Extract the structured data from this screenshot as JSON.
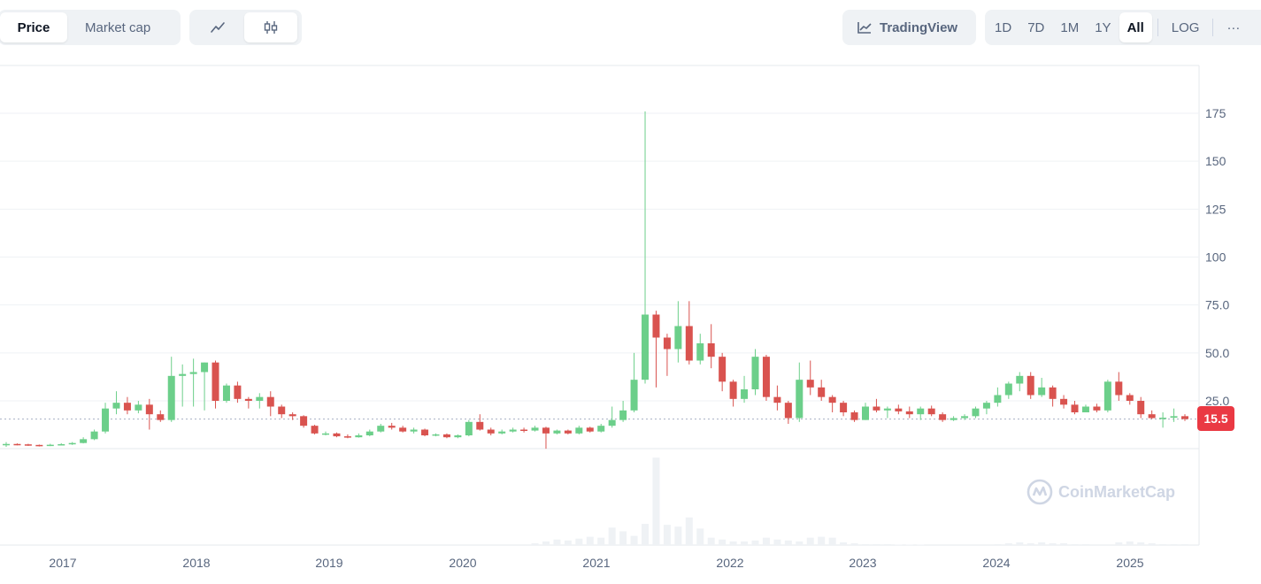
{
  "toolbar": {
    "metric_tabs": [
      "Price",
      "Market cap"
    ],
    "tradingview_label": "TradingView",
    "ranges": [
      "1D",
      "7D",
      "1M",
      "1Y",
      "All"
    ],
    "log_label": "LOG",
    "more_label": "···"
  },
  "current_price": "15.5",
  "watermark": "CoinMarketCap",
  "colors": {
    "up": "#16c784",
    "down": "#ea3943",
    "grid": "#eff2f5",
    "volume": "#eff2f5"
  },
  "chart_data": {
    "type": "candlestick",
    "title": "",
    "xlabel": "",
    "ylabel": "",
    "ylim": [
      -10,
      200
    ],
    "y_ticks": [
      25.0,
      50.0,
      75.0,
      100,
      125,
      150,
      175
    ],
    "y_tick_labels": [
      "25.0",
      "50.0",
      "75.0",
      "100",
      "125",
      "150",
      "175"
    ],
    "x_ticks": [
      "2017",
      "2018",
      "2019",
      "2020",
      "2021",
      "2022",
      "2023",
      "2024",
      "2025"
    ],
    "current_price": 15.5,
    "interval": "monthly",
    "candles": [
      [
        2,
        2.5,
        1.0,
        3.5
      ],
      [
        2.5,
        2.3,
        1.8,
        2.8
      ],
      [
        2.3,
        2.0,
        1.5,
        2.6
      ],
      [
        2.0,
        1.8,
        1.2,
        2.2
      ],
      [
        1.8,
        2.1,
        1.4,
        2.6
      ],
      [
        2.1,
        2.4,
        1.8,
        2.9
      ],
      [
        2.4,
        3.0,
        2.0,
        3.5
      ],
      [
        3.0,
        5.0,
        2.8,
        6.0
      ],
      [
        5.0,
        9.0,
        4.5,
        10.0
      ],
      [
        9.0,
        21.0,
        8.0,
        24.0
      ],
      [
        21.0,
        24.0,
        18.0,
        30.0
      ],
      [
        24.0,
        20.0,
        18.0,
        27.0
      ],
      [
        20.0,
        23.0,
        18.5,
        25.0
      ],
      [
        23.0,
        18.0,
        10.0,
        26.0
      ],
      [
        18.0,
        15.0,
        14.0,
        20.0
      ],
      [
        15.0,
        38.0,
        14.0,
        48.0
      ],
      [
        38.0,
        39.0,
        22.0,
        44.0
      ],
      [
        39.0,
        40.0,
        22.0,
        47.0
      ],
      [
        40.0,
        45.0,
        20.0,
        45.0
      ],
      [
        45.0,
        25.0,
        21.0,
        46.0
      ],
      [
        25.0,
        33.0,
        24.0,
        34.0
      ],
      [
        33.0,
        26.0,
        24.0,
        35.0
      ],
      [
        26.0,
        25.0,
        21.0,
        27.0
      ],
      [
        25.0,
        27.0,
        21.0,
        29.0
      ],
      [
        27.0,
        22.0,
        17.0,
        30.0
      ],
      [
        22.0,
        18.0,
        16.0,
        23.0
      ],
      [
        18.0,
        17.0,
        15.0,
        19.0
      ],
      [
        17.0,
        12.0,
        11.0,
        17.5
      ],
      [
        12.0,
        8.0,
        7.5,
        12.5
      ],
      [
        8.0,
        8.0,
        7.0,
        9.0
      ],
      [
        8.0,
        6.5,
        6.0,
        8.5
      ],
      [
        6.5,
        6.0,
        5.5,
        7.5
      ],
      [
        6.0,
        7.0,
        5.8,
        8.0
      ],
      [
        7.0,
        9.0,
        6.5,
        10.0
      ],
      [
        9.0,
        12.0,
        8.5,
        13.0
      ],
      [
        12.0,
        11.0,
        10.0,
        13.5
      ],
      [
        11.0,
        9.0,
        8.5,
        12.0
      ],
      [
        9.0,
        10.0,
        8.0,
        11.0
      ],
      [
        10.0,
        7.0,
        6.5,
        10.5
      ],
      [
        7.0,
        7.5,
        6.5,
        8.0
      ],
      [
        7.5,
        6.0,
        5.5,
        8.0
      ],
      [
        6.0,
        7.0,
        5.5,
        7.5
      ],
      [
        7.0,
        14.0,
        6.5,
        15.0
      ],
      [
        14.0,
        10.0,
        9.5,
        18.0
      ],
      [
        10.0,
        8.0,
        7.0,
        11.0
      ],
      [
        8.0,
        9.0,
        7.5,
        10.0
      ],
      [
        9.0,
        10.0,
        8.5,
        11.0
      ],
      [
        10.0,
        9.5,
        8.5,
        11.0
      ],
      [
        9.5,
        11.0,
        9.0,
        12.0
      ],
      [
        11.0,
        8.0,
        0.0,
        11.5
      ],
      [
        8.0,
        9.5,
        7.5,
        10.0
      ],
      [
        9.5,
        8.0,
        7.5,
        10.0
      ],
      [
        8.0,
        11.0,
        7.5,
        12.0
      ],
      [
        11.0,
        9.0,
        8.5,
        11.5
      ],
      [
        9.0,
        12.0,
        8.5,
        13.0
      ],
      [
        12.0,
        15.0,
        11.0,
        22.0
      ],
      [
        15.0,
        20.0,
        14.0,
        25.0
      ],
      [
        20.0,
        36.0,
        19.0,
        50.0
      ],
      [
        36.0,
        70.0,
        34.0,
        176.0
      ],
      [
        70.0,
        58.0,
        32.0,
        72.0
      ],
      [
        58.0,
        52.0,
        38.0,
        60.0
      ],
      [
        52.0,
        64.0,
        45.0,
        77.0
      ],
      [
        64.0,
        46.0,
        44.0,
        77.0
      ],
      [
        46.0,
        55.0,
        44.0,
        60.0
      ],
      [
        55.0,
        48.0,
        42.0,
        65.0
      ],
      [
        48.0,
        35.0,
        30.0,
        50.0
      ],
      [
        35.0,
        26.0,
        22.0,
        36.0
      ],
      [
        26.0,
        31.0,
        24.0,
        38.0
      ],
      [
        31.0,
        48.0,
        28.0,
        52.0
      ],
      [
        48.0,
        27.0,
        25.0,
        49.0
      ],
      [
        27.0,
        24.0,
        20.0,
        33.0
      ],
      [
        24.0,
        16.0,
        13.0,
        25.0
      ],
      [
        16.0,
        36.0,
        14.0,
        45.0
      ],
      [
        36.0,
        32.0,
        28.0,
        46.0
      ],
      [
        32.0,
        27.0,
        25.0,
        36.0
      ],
      [
        27.0,
        24.0,
        19.0,
        28.0
      ],
      [
        24.0,
        19.0,
        17.0,
        25.0
      ],
      [
        19.0,
        15.0,
        14.0,
        20.0
      ],
      [
        15.0,
        22.0,
        15.0,
        24.0
      ],
      [
        22.0,
        20.0,
        19.0,
        26.0
      ],
      [
        20.0,
        21.0,
        16.0,
        22.0
      ],
      [
        21.0,
        19.5,
        18.0,
        23.0
      ],
      [
        19.5,
        18.0,
        16.0,
        22.0
      ],
      [
        18.0,
        21.0,
        15.0,
        22.0
      ],
      [
        21.0,
        18.0,
        17.0,
        22.5
      ],
      [
        18.0,
        15.0,
        14.0,
        19.0
      ],
      [
        15.0,
        16.0,
        14.5,
        17.0
      ],
      [
        16.0,
        17.0,
        15.0,
        18.0
      ],
      [
        17.0,
        21.0,
        16.0,
        22.0
      ],
      [
        21.0,
        24.0,
        18.0,
        25.0
      ],
      [
        24.0,
        28.0,
        22.0,
        32.0
      ],
      [
        28.0,
        34.0,
        26.0,
        35.0
      ],
      [
        34.0,
        38.0,
        30.0,
        40.0
      ],
      [
        38.0,
        28.0,
        26.0,
        40.0
      ],
      [
        28.0,
        32.0,
        27.0,
        37.0
      ],
      [
        32.0,
        26.0,
        22.0,
        33.0
      ],
      [
        26.0,
        23.0,
        21.0,
        28.0
      ],
      [
        23.0,
        19.0,
        18.0,
        25.0
      ],
      [
        19.0,
        22.0,
        19.0,
        23.0
      ],
      [
        22.0,
        20.0,
        19.0,
        23.5
      ],
      [
        20.0,
        35.0,
        19.0,
        36.0
      ],
      [
        35.0,
        28.0,
        25.0,
        40.0
      ],
      [
        28.0,
        25.0,
        23.0,
        29.0
      ],
      [
        25.0,
        18.0,
        16.0,
        27.0
      ],
      [
        18.0,
        16.0,
        15.5,
        20.0
      ],
      [
        16.0,
        16.2,
        11.0,
        19.0
      ],
      [
        16.2,
        17.0,
        14.0,
        21.0
      ],
      [
        17.0,
        15.5,
        14.5,
        18.0
      ]
    ],
    "volume": [
      0,
      0,
      0,
      0,
      0,
      0,
      0,
      0,
      0,
      0,
      0,
      0,
      0,
      0,
      0,
      0,
      0,
      0,
      0,
      0,
      0,
      0,
      0,
      0,
      0,
      0,
      0,
      0,
      0,
      0,
      0,
      0,
      0,
      0,
      0,
      0,
      0,
      0,
      0,
      0,
      0,
      0,
      0,
      0,
      0,
      0,
      0,
      0,
      0.02,
      0.04,
      0.06,
      0.05,
      0.07,
      0.09,
      0.08,
      0.19,
      0.15,
      0.1,
      0.23,
      0.95,
      0.22,
      0.2,
      0.3,
      0.18,
      0.08,
      0.06,
      0.04,
      0.04,
      0.05,
      0.08,
      0.06,
      0.05,
      0.04,
      0.08,
      0.09,
      0.08,
      0.03,
      0.02,
      0.01,
      0.01,
      0.01,
      0.005,
      0.005,
      0.005,
      0,
      0,
      0,
      0,
      0,
      0,
      0.01,
      0.02,
      0.03,
      0.02,
      0.03,
      0.02,
      0.02,
      0.01,
      0.01,
      0,
      0,
      0.03,
      0.04,
      0.03,
      0.02,
      0.01,
      0.01,
      0.01
    ]
  }
}
